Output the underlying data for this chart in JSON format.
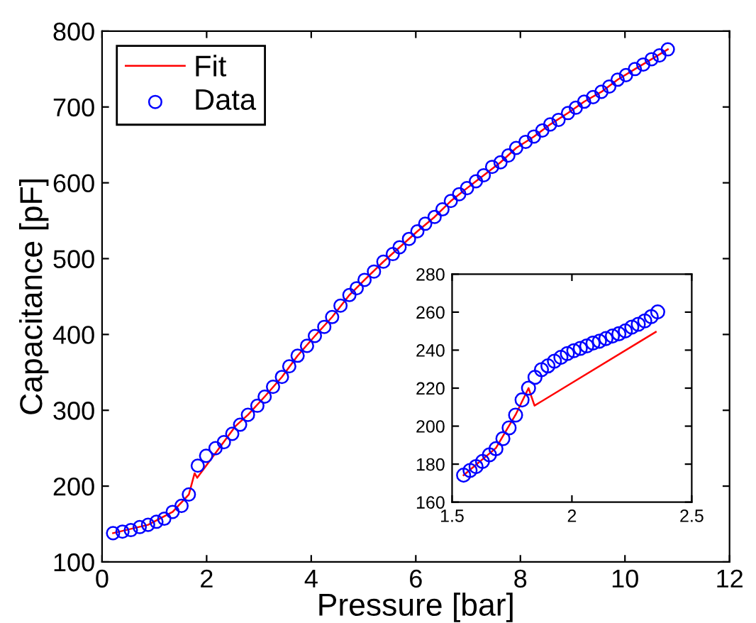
{
  "chart_data": [
    {
      "type": "line",
      "xlabel": "Pressure [bar]",
      "ylabel": "Capacitance [pF]",
      "xlim": [
        0,
        12
      ],
      "xticks": [
        0,
        2,
        4,
        6,
        8,
        10,
        12
      ],
      "ylim": [
        100,
        800
      ],
      "yticks": [
        100,
        200,
        300,
        400,
        500,
        600,
        700,
        800
      ],
      "grid": false,
      "legend": "top left",
      "series": [
        {
          "name": "Fit",
          "color": "#ff0000",
          "marker": "none",
          "line_style": "solid",
          "x": [
            0.21,
            0.88,
            1.35,
            1.66,
            1.77,
            1.82,
            2.55,
            2.79,
            3.11,
            3.44,
            3.74,
            4.07,
            4.4,
            4.73,
            5.02,
            5.38,
            5.69,
            6.03,
            6.36,
            6.67,
            6.98,
            7.3,
            7.62,
            7.92,
            8.26,
            8.57,
            8.91,
            9.22,
            9.55,
            9.86,
            10.19,
            10.51,
            10.82
          ],
          "values": [
            138,
            149,
            166,
            189,
            217,
            211,
            279,
            294,
            318,
            344,
            372,
            398,
            423,
            452,
            472,
            496,
            515,
            536,
            555,
            576,
            593,
            610,
            627,
            646,
            661,
            677,
            692,
            707,
            720,
            736,
            750,
            763,
            776
          ]
        },
        {
          "name": "Data",
          "type": "scatter",
          "color": "#0000ff",
          "marker": "circle",
          "x": [
            0.21,
            0.39,
            0.55,
            0.72,
            0.88,
            1.04,
            1.19,
            1.35,
            1.52,
            1.66,
            1.83,
            1.99,
            2.17,
            2.33,
            2.49,
            2.64,
            2.79,
            2.97,
            3.11,
            3.27,
            3.44,
            3.58,
            3.74,
            3.92,
            4.07,
            4.25,
            4.4,
            4.56,
            4.73,
            4.87,
            5.02,
            5.2,
            5.38,
            5.56,
            5.69,
            5.87,
            6.03,
            6.18,
            6.36,
            6.51,
            6.67,
            6.83,
            6.98,
            7.15,
            7.3,
            7.46,
            7.62,
            7.77,
            7.92,
            8.1,
            8.26,
            8.42,
            8.57,
            8.73,
            8.91,
            9.06,
            9.22,
            9.39,
            9.55,
            9.7,
            9.86,
            10.02,
            10.19,
            10.35,
            10.51,
            10.66,
            10.82
          ],
          "values": [
            138,
            140,
            142,
            146,
            149,
            153,
            157,
            166,
            174,
            189,
            227,
            240,
            250,
            258,
            269,
            281,
            294,
            306,
            318,
            331,
            344,
            358,
            372,
            385,
            398,
            410,
            423,
            438,
            452,
            461,
            472,
            483,
            496,
            506,
            515,
            526,
            536,
            546,
            555,
            565,
            576,
            585,
            593,
            602,
            610,
            621,
            627,
            636,
            646,
            654,
            661,
            669,
            677,
            683,
            692,
            699,
            707,
            713,
            720,
            727,
            736,
            742,
            750,
            756,
            763,
            768,
            776
          ]
        }
      ]
    },
    {
      "type": "line",
      "xlim": [
        1.5,
        2.5
      ],
      "xticks": [
        1.5,
        2,
        2.5
      ],
      "ylim": [
        160,
        280
      ],
      "yticks": [
        160,
        180,
        200,
        220,
        240,
        260,
        280
      ],
      "grid": false,
      "legend": false,
      "series": [
        {
          "color": "#ff0000",
          "marker": "none",
          "line_style": "solid",
          "x": [
            1.548,
            1.683,
            1.765,
            1.819,
            1.844,
            2.35
          ],
          "values": [
            174.2,
            188.5,
            206,
            220,
            210.8,
            249.6
          ]
        },
        {
          "type": "scatter",
          "color": "#0000ff",
          "marker": "circle",
          "x": [
            1.548,
            1.575,
            1.6,
            1.627,
            1.656,
            1.683,
            1.712,
            1.738,
            1.765,
            1.792,
            1.819,
            1.846,
            1.873,
            1.9,
            1.927,
            1.954,
            1.981,
            2.008,
            2.035,
            2.062,
            2.088,
            2.115,
            2.142,
            2.169,
            2.196,
            2.223,
            2.25,
            2.277,
            2.304,
            2.331,
            2.358
          ],
          "values": [
            174.2,
            176.7,
            178.7,
            181.4,
            184.9,
            188.1,
            193.4,
            199.1,
            205.8,
            213.8,
            220.0,
            225.7,
            229.7,
            231.7,
            234.2,
            236.2,
            238.2,
            239.7,
            240.9,
            242.2,
            243.7,
            244.7,
            246.1,
            247.4,
            248.6,
            250.1,
            252.1,
            253.6,
            255.4,
            257.6,
            260.1
          ]
        }
      ]
    }
  ]
}
